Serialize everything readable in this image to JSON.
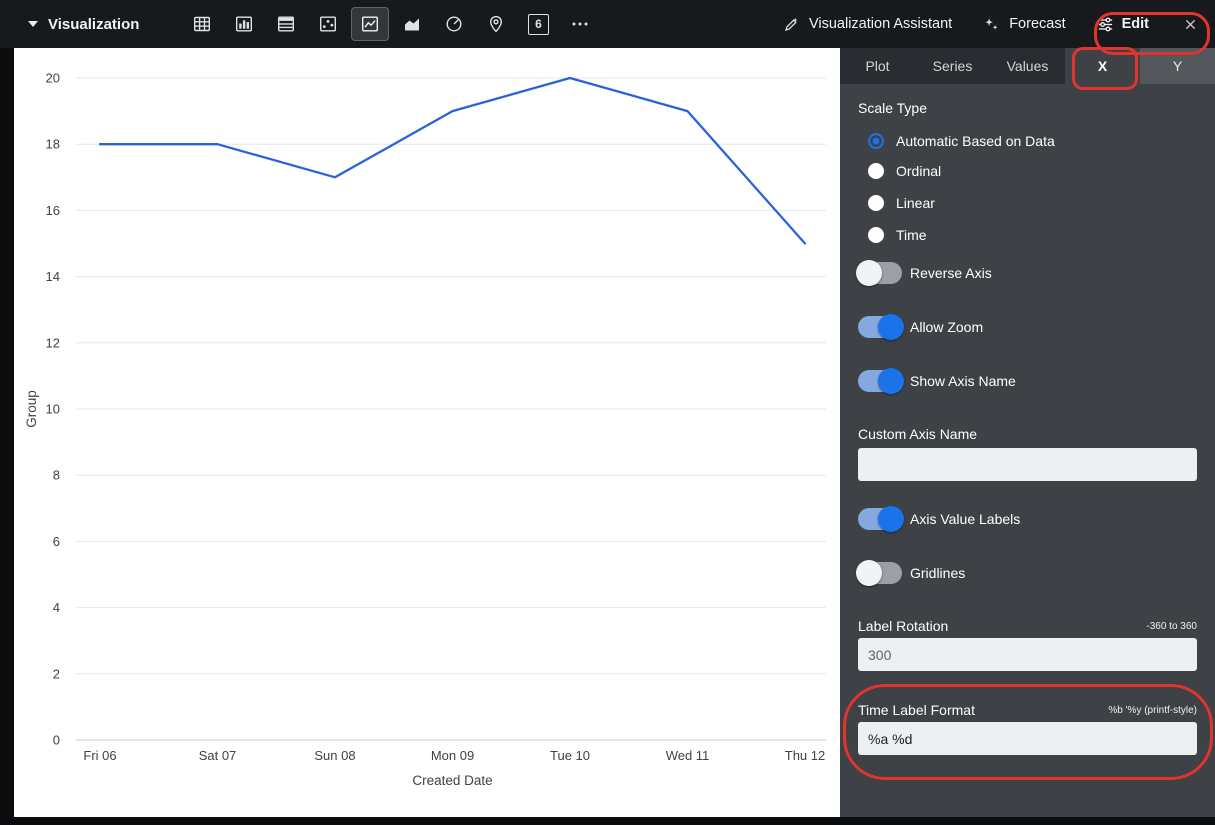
{
  "colors": {
    "annotation_red": "#e2342f",
    "accent_blue": "#1a73e8",
    "panel_bg": "#3e4247",
    "series_line": "#2962d9"
  },
  "topbar": {
    "title": "Visualization",
    "single_value_icon_text": "6",
    "assistant_label": "Visualization Assistant",
    "forecast_label": "Forecast",
    "edit_label": "Edit"
  },
  "panel": {
    "tabs": [
      {
        "label": "Plot",
        "active": false
      },
      {
        "label": "Series",
        "active": false
      },
      {
        "label": "Values",
        "active": false
      },
      {
        "label": "X",
        "active": true
      },
      {
        "label": "Y",
        "active": false
      }
    ],
    "scale_type": {
      "label": "Scale Type",
      "options": [
        {
          "label": "Automatic Based on Data",
          "selected": true
        },
        {
          "label": "Ordinal",
          "selected": false
        },
        {
          "label": "Linear",
          "selected": false
        },
        {
          "label": "Time",
          "selected": false
        }
      ]
    },
    "reverse_axis": {
      "label": "Reverse Axis",
      "on": false
    },
    "allow_zoom": {
      "label": "Allow Zoom",
      "on": true
    },
    "show_axis_name": {
      "label": "Show Axis Name",
      "on": true
    },
    "custom_axis_name": {
      "label": "Custom Axis Name",
      "value": ""
    },
    "axis_value_labels": {
      "label": "Axis Value Labels",
      "on": true
    },
    "gridlines": {
      "label": "Gridlines",
      "on": false
    },
    "label_rotation": {
      "label": "Label Rotation",
      "hint": "-360 to 360",
      "value": "300"
    },
    "time_label_format": {
      "label": "Time Label Format",
      "hint": "%b '%y (printf-style)",
      "value": "%a %d"
    }
  },
  "chart_data": {
    "type": "line",
    "title": "",
    "categories": [
      "Fri 06",
      "Sat 07",
      "Sun 08",
      "Mon 09",
      "Tue 10",
      "Wed 11",
      "Thu 12"
    ],
    "series": [
      {
        "name": "Group",
        "values": [
          18,
          18,
          17,
          19,
          20,
          19,
          15
        ],
        "color": "#2962d9"
      }
    ],
    "xlabel": "Created Date",
    "ylabel": "Group",
    "ylim": [
      0,
      20
    ],
    "y_ticks": [
      0,
      2,
      4,
      6,
      8,
      10,
      12,
      14,
      16,
      18,
      20
    ],
    "grid": "horizontal-light",
    "legend": "none"
  }
}
